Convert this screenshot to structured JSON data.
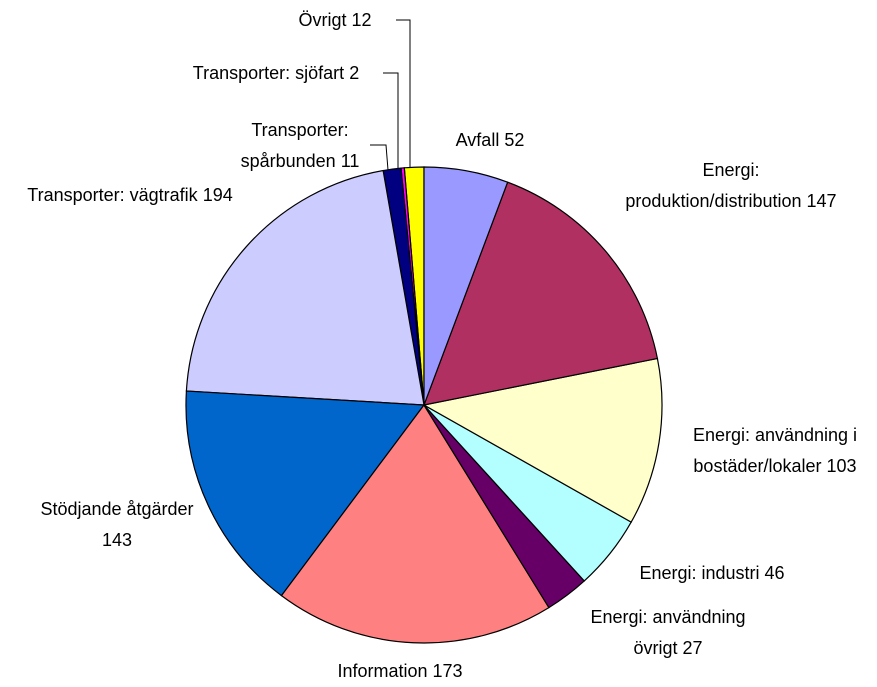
{
  "chart_data": {
    "type": "pie",
    "categories": [
      "Avfall",
      "Energi: produktion/distribution",
      "Energi: användning i bostäder/lokaler",
      "Energi: industri",
      "Energi: användning övrigt",
      "Information",
      "Stödjande åtgärder",
      "Transporter: vägtrafik",
      "Transporter: spårbunden",
      "Transporter: sjöfart",
      "Övrigt"
    ],
    "values": [
      52,
      147,
      103,
      46,
      27,
      173,
      143,
      194,
      11,
      2,
      12
    ],
    "colors": [
      "#9999ff",
      "#b03062",
      "#ffffcc",
      "#b3ffff",
      "#660066",
      "#ff8080",
      "#0066cc",
      "#ccccff",
      "#000080",
      "#ff00ff",
      "#ffff00"
    ]
  }
}
